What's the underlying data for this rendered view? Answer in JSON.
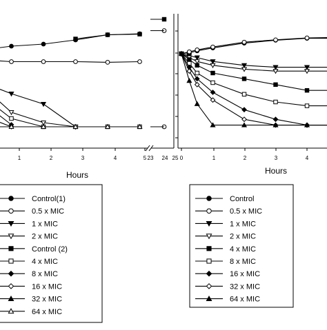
{
  "chart_data": [
    {
      "type": "line",
      "xlabel": "Hours",
      "ylabel": "",
      "title": "",
      "x_ticks": [
        "1",
        "2",
        "3",
        "4",
        "5",
        "23",
        "24",
        "25"
      ],
      "xlim": [
        0,
        5
      ],
      "ylim": [
        1,
        6
      ],
      "legend": {
        "placement": "bottom-left",
        "entries": [
          "Control(1)",
          "0.5 x MIC",
          "1 x MIC",
          "2 x MIC",
          "Control (2)",
          "4 x MIC",
          "8 x MIC",
          "16 x MIC",
          "32 x MIC",
          "64 x MIC"
        ]
      },
      "series": [
        {
          "name": "Control(1)",
          "marker": "filled-circle",
          "x": [
            0,
            0.25,
            0.5,
            1,
            2,
            3,
            4,
            5
          ],
          "y": [
            5.0,
            5.05,
            5.1,
            5.2,
            5.3,
            5.5,
            5.75,
            5.8
          ]
        },
        {
          "name": "0.5 x MIC",
          "marker": "open-circle",
          "x": [
            0,
            0.5,
            1,
            2,
            3,
            4,
            5
          ],
          "y": [
            4.5,
            4.5,
            4.45,
            4.45,
            4.45,
            4.42,
            4.45
          ]
        },
        {
          "name": "1 x MIC",
          "marker": "filled-triangle-down",
          "x": [
            0,
            0.25,
            0.5,
            1,
            2,
            3
          ],
          "y": [
            3.7,
            3.5,
            3.2,
            2.9,
            2.4,
            1.3
          ]
        },
        {
          "name": "2 x MIC",
          "marker": "open-triangle-down",
          "x": [
            0,
            0.25,
            0.5,
            1,
            2,
            3
          ],
          "y": [
            3.5,
            3.1,
            2.7,
            2.0,
            1.5,
            1.3
          ]
        },
        {
          "name": "Control (2)",
          "marker": "filled-square",
          "x": [
            3,
            4,
            5
          ],
          "y": [
            5.55,
            5.75,
            5.78
          ]
        },
        {
          "name": "4 x MIC",
          "marker": "open-square",
          "x": [
            0,
            0.25,
            0.5,
            1,
            2,
            3,
            4,
            5
          ],
          "y": [
            3.3,
            2.9,
            2.3,
            1.7,
            1.3,
            1.3,
            1.3,
            1.3
          ]
        },
        {
          "name": "8 x MIC",
          "marker": "filled-diamond",
          "x": [
            0,
            0.25,
            0.5,
            1
          ],
          "y": [
            3.0,
            2.5,
            2.0,
            1.4
          ]
        },
        {
          "name": "16 x MIC",
          "marker": "open-diamond",
          "x": [
            0,
            0.25,
            0.5,
            1
          ],
          "y": [
            2.7,
            2.2,
            1.6,
            1.3
          ]
        },
        {
          "name": "32 x MIC",
          "marker": "filled-triangle-up",
          "x": [
            0,
            0.25,
            0.5
          ],
          "y": [
            2.3,
            1.8,
            1.4
          ]
        },
        {
          "name": "64 x MIC",
          "marker": "open-triangle-up",
          "x": [
            0,
            0.25,
            0.5,
            1,
            2,
            3,
            4,
            5
          ],
          "y": [
            1.8,
            1.4,
            1.3,
            1.3,
            1.3,
            1.3,
            1.3,
            1.3
          ]
        }
      ],
      "after_break": [
        {
          "name": "Control(1)",
          "marker": "filled-square",
          "x": 24,
          "y": 6.5
        },
        {
          "name": "0.5 x MIC",
          "marker": "open-circle",
          "x": 24,
          "y": 5.95
        },
        {
          "name": "64 x MIC",
          "marker": "open-circle",
          "x": 24,
          "y": 1.3
        }
      ]
    },
    {
      "type": "line",
      "xlabel": "Hours",
      "ylabel": "",
      "title": "",
      "x_ticks": [
        "0",
        "1",
        "2",
        "3",
        "4"
      ],
      "xlim": [
        0,
        5
      ],
      "ylim": [
        1,
        6
      ],
      "legend": {
        "placement": "bottom-right",
        "entries": [
          "Control",
          "0.5 x MIC",
          "1 x MIC",
          "2 x MIC",
          "4 x MIC",
          "8 x MIC",
          "16 x MIC",
          "32 x MIC",
          "64 x MIC"
        ]
      },
      "series": [
        {
          "name": "Control",
          "marker": "filled-circle",
          "x": [
            0,
            0.25,
            0.5,
            1,
            2,
            3,
            4,
            5
          ],
          "y": [
            5.0,
            5.05,
            5.15,
            5.3,
            5.55,
            5.7,
            5.8,
            5.8
          ]
        },
        {
          "name": "0.5 x MIC",
          "marker": "open-circle",
          "x": [
            0,
            0.25,
            0.5,
            1,
            2,
            3,
            4,
            5
          ],
          "y": [
            5.0,
            5.1,
            5.2,
            5.35,
            5.6,
            5.72,
            5.82,
            5.85
          ]
        },
        {
          "name": "1 x MIC",
          "marker": "filled-triangle-down",
          "x": [
            0,
            0.25,
            0.5,
            1,
            2,
            3,
            4,
            5
          ],
          "y": [
            5.0,
            4.9,
            4.8,
            4.6,
            4.4,
            4.3,
            4.3,
            4.3
          ]
        },
        {
          "name": "2 x MIC",
          "marker": "open-triangle-down",
          "x": [
            0,
            0.25,
            0.5,
            1,
            2,
            3,
            4,
            5
          ],
          "y": [
            5.0,
            4.8,
            4.6,
            4.4,
            4.2,
            4.1,
            4.1,
            4.1
          ]
        },
        {
          "name": "4 x MIC",
          "marker": "filled-square",
          "x": [
            0,
            0.25,
            0.5,
            1,
            2,
            3,
            4,
            5
          ],
          "y": [
            5.0,
            4.7,
            4.4,
            4.0,
            3.7,
            3.4,
            3.1,
            3.1
          ]
        },
        {
          "name": "8 x MIC",
          "marker": "open-square",
          "x": [
            0,
            0.25,
            0.5,
            1,
            2,
            3,
            4,
            5
          ],
          "y": [
            5.0,
            4.5,
            4.0,
            3.5,
            2.9,
            2.5,
            2.3,
            2.3
          ]
        },
        {
          "name": "16 x MIC",
          "marker": "filled-diamond",
          "x": [
            0,
            0.25,
            0.5,
            1,
            2,
            3,
            4,
            5
          ],
          "y": [
            5.0,
            4.3,
            3.7,
            3.0,
            2.1,
            1.6,
            1.3,
            1.3
          ]
        },
        {
          "name": "32 x MIC",
          "marker": "open-diamond",
          "x": [
            0,
            0.25,
            0.5,
            1,
            2,
            3,
            4,
            5
          ],
          "y": [
            5.0,
            4.1,
            3.4,
            2.6,
            1.6,
            1.3,
            1.3,
            1.3
          ]
        },
        {
          "name": "64 x MIC",
          "marker": "filled-triangle-up",
          "x": [
            0,
            0.25,
            0.5,
            1,
            2,
            3,
            4,
            5
          ],
          "y": [
            5.0,
            3.6,
            2.4,
            1.3,
            1.3,
            1.3,
            1.3,
            1.3
          ]
        }
      ]
    }
  ]
}
